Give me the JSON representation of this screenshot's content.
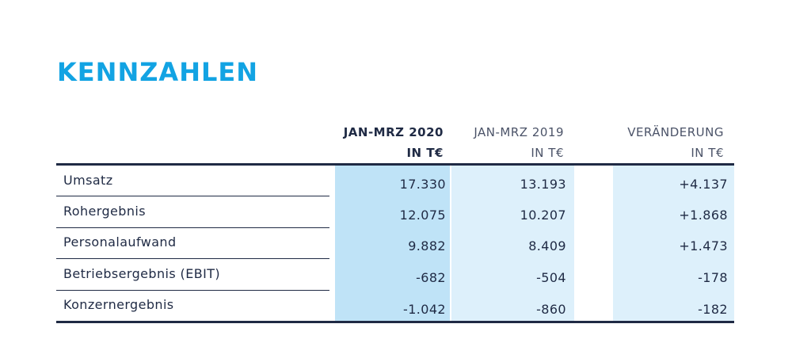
{
  "title": "KENNZAHLEN",
  "columns": [
    {
      "line1": "JAN-MRZ 2020",
      "line2": "IN T€"
    },
    {
      "line1": "JAN-MRZ 2019",
      "line2": "IN T€"
    },
    {
      "line1": "VERÄNDERUNG",
      "line2": "IN T€"
    }
  ],
  "rows": [
    {
      "label": "Umsatz",
      "v2020": "17.330",
      "v2019": "13.193",
      "change": "+4.137"
    },
    {
      "label": "Rohergebnis",
      "v2020": "12.075",
      "v2019": "10.207",
      "change": "+1.868"
    },
    {
      "label": "Personalaufwand",
      "v2020": "9.882",
      "v2019": "8.409",
      "change": "+1.473"
    },
    {
      "label": "Betriebsergebnis (EBIT)",
      "v2020": "-682",
      "v2019": "-504",
      "change": "-178"
    },
    {
      "label": "Konzernergebnis",
      "v2020": "-1.042",
      "v2019": "-860",
      "change": "-182"
    }
  ],
  "colors": {
    "title": "#12a3e3",
    "rule": "#1f2a44",
    "col2020_bg": "#bfe3f7",
    "col2019_bg": "#ddf0fb",
    "change_bg": "#ddf0fb"
  }
}
